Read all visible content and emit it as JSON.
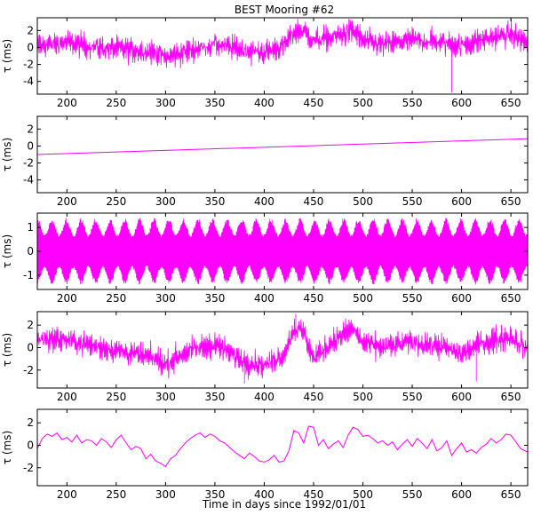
{
  "figure": {
    "title": "BEST Mooring #62",
    "xlabel": "Time in days since 1992/01/01",
    "ylabel": "τ (ms)",
    "series_color": "#ff00ff"
  },
  "chart_data": [
    {
      "type": "line",
      "title": "BEST Mooring #62",
      "ylabel": "τ (ms)",
      "xlim": [
        170,
        667
      ],
      "ylim": [
        -5.5,
        3.5
      ],
      "xticks": [
        200,
        250,
        300,
        350,
        400,
        450,
        500,
        550,
        600,
        650
      ],
      "yticks": [
        -4,
        -2,
        0,
        2
      ],
      "style": "noisy",
      "trend": {
        "x": [
          170,
          200,
          230,
          260,
          290,
          300,
          320,
          350,
          380,
          400,
          420,
          430,
          440,
          450,
          470,
          490,
          500,
          520,
          550,
          580,
          600,
          620,
          650,
          667
        ],
        "y": [
          0.2,
          0.6,
          0.0,
          -0.2,
          -0.6,
          -1.2,
          -0.5,
          0.4,
          -0.3,
          -0.6,
          0.2,
          1.8,
          2.0,
          0.8,
          1.2,
          2.0,
          0.8,
          0.3,
          0.9,
          0.6,
          0.2,
          0.9,
          1.6,
          0.5
        ]
      },
      "noise_amplitude": 1.6,
      "spikes": [
        {
          "x": 590,
          "y": -5.3
        }
      ],
      "grid": false
    },
    {
      "type": "line",
      "ylabel": "τ (ms)",
      "xlim": [
        170,
        667
      ],
      "ylim": [
        -5.5,
        3.5
      ],
      "xticks": [
        200,
        250,
        300,
        350,
        400,
        450,
        500,
        550,
        600,
        650
      ],
      "yticks": [
        -4,
        -2,
        0,
        2
      ],
      "style": "smooth",
      "x": [
        170,
        667
      ],
      "y": [
        -1.0,
        0.85
      ],
      "grid": false
    },
    {
      "type": "line",
      "ylabel": "τ (ms)",
      "xlim": [
        170,
        667
      ],
      "ylim": [
        -1.6,
        1.6
      ],
      "xticks": [
        200,
        250,
        300,
        350,
        400,
        450,
        500,
        550,
        600,
        650
      ],
      "yticks": [
        -1,
        0,
        1
      ],
      "style": "tidal",
      "envelope_peak": 1.4,
      "envelope_trough": 0.7,
      "spring_neap_period_days": 14.8,
      "grid": false
    },
    {
      "type": "line",
      "ylabel": "τ (ms)",
      "xlim": [
        170,
        667
      ],
      "ylim": [
        -3.6,
        3.2
      ],
      "xticks": [
        200,
        250,
        300,
        350,
        400,
        450,
        500,
        550,
        600,
        650
      ],
      "yticks": [
        -2,
        0,
        2
      ],
      "style": "noisy",
      "trend": {
        "x": [
          170,
          200,
          230,
          260,
          290,
          300,
          320,
          350,
          380,
          400,
          420,
          430,
          440,
          450,
          470,
          490,
          500,
          520,
          550,
          580,
          600,
          620,
          650,
          667
        ],
        "y": [
          0.8,
          0.7,
          0.1,
          -0.4,
          -1.0,
          -1.5,
          -0.4,
          0.3,
          -1.2,
          -1.6,
          -0.6,
          1.7,
          1.4,
          -1.0,
          0.6,
          1.7,
          0.4,
          0.0,
          0.5,
          0.1,
          -0.6,
          0.4,
          1.0,
          -0.2
        ]
      },
      "noise_amplitude": 1.2,
      "spikes": [
        {
          "x": 432,
          "y": 3.0
        },
        {
          "x": 380,
          "y": -3.2
        },
        {
          "x": 615,
          "y": -3.0
        }
      ],
      "grid": false
    },
    {
      "type": "line",
      "ylabel": "τ (ms)",
      "xlabel": "Time in days since 1992/01/01",
      "xlim": [
        170,
        667
      ],
      "ylim": [
        -3.6,
        3.2
      ],
      "xticks": [
        200,
        250,
        300,
        350,
        400,
        450,
        500,
        550,
        600,
        650
      ],
      "yticks": [
        -2,
        0,
        2
      ],
      "style": "smooth",
      "x": [
        170,
        175,
        180,
        185,
        190,
        195,
        200,
        205,
        210,
        215,
        220,
        225,
        230,
        235,
        240,
        245,
        250,
        255,
        260,
        265,
        270,
        275,
        280,
        285,
        290,
        295,
        300,
        305,
        310,
        315,
        320,
        325,
        330,
        335,
        340,
        345,
        350,
        355,
        360,
        365,
        370,
        375,
        380,
        385,
        390,
        395,
        400,
        405,
        410,
        415,
        420,
        425,
        430,
        435,
        440,
        445,
        450,
        455,
        460,
        465,
        470,
        475,
        480,
        485,
        490,
        495,
        500,
        505,
        510,
        515,
        520,
        525,
        530,
        535,
        540,
        545,
        550,
        555,
        560,
        565,
        570,
        575,
        580,
        585,
        590,
        595,
        600,
        605,
        610,
        615,
        620,
        625,
        630,
        635,
        640,
        645,
        650,
        655,
        660,
        667
      ],
      "y": [
        -0.3,
        0.6,
        1.0,
        0.8,
        1.1,
        0.5,
        0.7,
        0.3,
        0.9,
        0.2,
        0.5,
        0.4,
        0.0,
        0.6,
        0.3,
        -0.2,
        0.5,
        0.9,
        0.2,
        -0.4,
        -0.1,
        -0.3,
        -1.2,
        -0.8,
        -1.4,
        -1.6,
        -1.9,
        -1.2,
        -0.9,
        -0.3,
        0.2,
        0.6,
        0.9,
        1.1,
        0.7,
        1.0,
        0.8,
        0.4,
        0.2,
        -0.2,
        -0.6,
        -0.9,
        -1.2,
        -0.7,
        -1.0,
        -1.4,
        -1.5,
        -1.3,
        -0.9,
        -1.5,
        -1.4,
        -0.5,
        1.3,
        1.1,
        0.2,
        1.7,
        1.6,
        0.0,
        0.5,
        -0.3,
        0.1,
        0.4,
        -0.2,
        0.9,
        1.6,
        1.4,
        0.8,
        0.9,
        0.6,
        0.2,
        0.4,
        0.0,
        0.3,
        -0.4,
        0.1,
        0.5,
        -0.1,
        0.6,
        0.2,
        -0.3,
        0.5,
        -0.5,
        -0.2,
        0.4,
        -0.9,
        -0.3,
        0.2,
        -0.6,
        -0.4,
        -0.7,
        -0.2,
        0.1,
        0.6,
        0.2,
        0.5,
        1.0,
        0.9,
        0.3,
        -0.3,
        -0.6
      ],
      "grid": false
    }
  ]
}
